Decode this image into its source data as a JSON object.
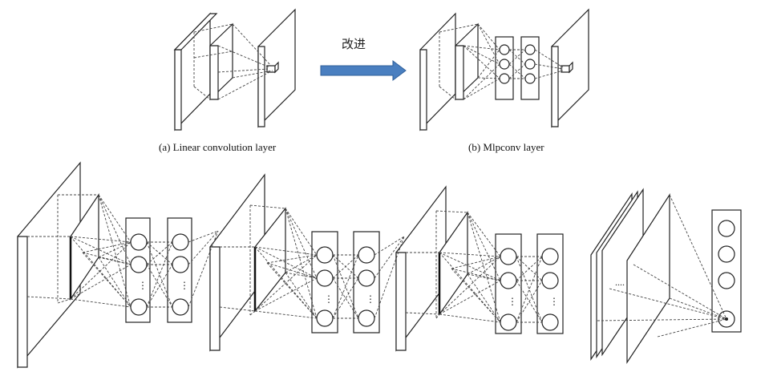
{
  "panel_a": {
    "caption": "(a) Linear convolution layer"
  },
  "panel_b": {
    "caption": "(b) Mlpconv layer"
  },
  "arrow": {
    "label": "改进",
    "color": "#4a7fc0",
    "edge": "#2f5f9a"
  },
  "network": {
    "mlpconv_blocks": 3,
    "hidden_nodes_per_column": 3,
    "output_nodes": 4
  },
  "colors": {
    "stroke": "#222222",
    "dash": "#444444"
  }
}
